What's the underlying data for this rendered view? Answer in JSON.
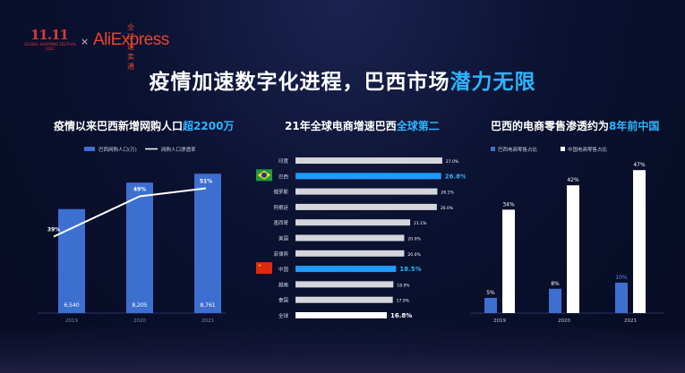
{
  "logo": {
    "event_mark": "11.11",
    "event_sub": "GLOBAL SHOPPING FESTIVAL 2021",
    "separator": "×",
    "brand": "AliExpress",
    "brand_cn": "全球速卖通"
  },
  "main_title": {
    "prefix": "疫情加速数字化进程，巴西市场",
    "highlight": "潜力无限"
  },
  "chart_data": [
    {
      "type": "bar",
      "title": "疫情以来巴西新增网购人口",
      "title_highlight": "超2200万",
      "categories": [
        "2019",
        "2020",
        "2021"
      ],
      "series": [
        {
          "name": "巴西网购人口(万)",
          "type": "bar",
          "values": [
            6540,
            8205,
            8761
          ],
          "labels": [
            "6,540",
            "8,205",
            "8,761"
          ],
          "color": "#3d6fd1"
        },
        {
          "name": "网购人口渗透率",
          "type": "line",
          "values": [
            39,
            49,
            51
          ],
          "labels": [
            "39%",
            "49%",
            "51%"
          ],
          "color": "#ffffff"
        }
      ],
      "legend": "top-left"
    },
    {
      "type": "bar",
      "orientation": "horizontal",
      "title": "21年全球电商增速巴西",
      "title_highlight": "全球第二",
      "categories": [
        "印度",
        "巴西",
        "俄罗斯",
        "阿根廷",
        "墨西哥",
        "美国",
        "菲律宾",
        "中国",
        "越南",
        "泰国",
        "全球"
      ],
      "values": [
        27.0,
        26.8,
        26.1,
        26.0,
        21.1,
        20.0,
        20.0,
        18.5,
        18.0,
        17.9,
        16.8
      ],
      "labels": [
        "27.0%",
        "26.8%",
        "26.1%",
        "26.0%",
        "21.1%",
        "20.0%",
        "20.0%",
        "18.5%",
        "18.0%",
        "17.9%",
        "16.8%"
      ],
      "highlight": {
        "巴西": "#1e9bff",
        "中国": "#1e9bff"
      },
      "flags": {
        "巴西": "brazil-flag-icon",
        "中国": "china-flag-icon"
      },
      "default_color": "#d5d5dc",
      "global_color": "#ffffff"
    },
    {
      "type": "bar",
      "title": "巴西的电商零售渗透约为",
      "title_highlight": "8年前中国",
      "categories": [
        "2019",
        "2020",
        "2021"
      ],
      "series": [
        {
          "name": "巴西电商零售占比",
          "values": [
            5,
            8,
            10
          ],
          "labels": [
            "5%",
            "8%",
            "10%"
          ],
          "color": "#3d6fd1"
        },
        {
          "name": "中国电商零售占比",
          "values": [
            34,
            42,
            47
          ],
          "labels": [
            "34%",
            "42%",
            "47%"
          ],
          "color": "#ffffff"
        }
      ],
      "legend": "top-left"
    }
  ]
}
